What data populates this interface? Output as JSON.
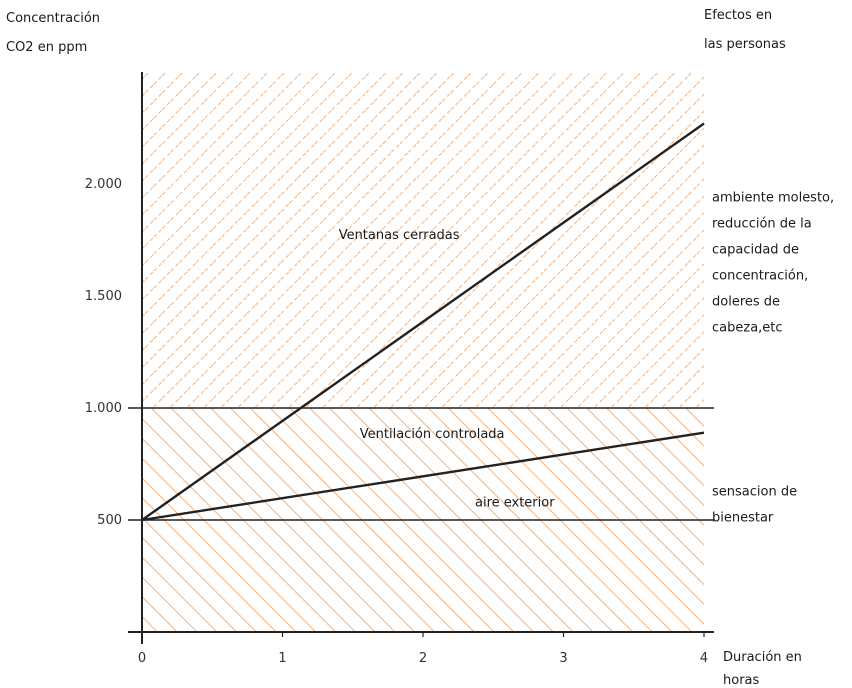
{
  "chart_data": {
    "type": "line",
    "ylabel_lines": [
      "Concentración",
      "CO2 en ppm"
    ],
    "xlabel_lines": [
      "Duración en",
      "horas"
    ],
    "right_title_lines": [
      "Efectos en",
      "las personas"
    ],
    "x_ticks": [
      "0",
      "1",
      "2",
      "3",
      "4"
    ],
    "y_ticks": [
      {
        "value": 500,
        "label": "500"
      },
      {
        "value": 1000,
        "label": "1.000"
      },
      {
        "value": 1500,
        "label": "1.500"
      },
      {
        "value": 2000,
        "label": "2.000"
      }
    ],
    "xlim": [
      0,
      4
    ],
    "ylim": [
      0,
      2500
    ],
    "series": [
      {
        "x": [
          0,
          4
        ],
        "y": [
          500,
          2270
        ],
        "color": "#222222"
      },
      {
        "x": [
          0,
          4
        ],
        "y": [
          500,
          890
        ],
        "color": "#222222"
      }
    ],
    "reference_lines": [
      1000,
      500
    ],
    "regions": [
      {
        "y_from": 1000,
        "y_to": 2500,
        "hatch": "dashed-diagonal",
        "color": "#f0a060"
      },
      {
        "y_from": 0,
        "y_to": 1000,
        "hatch": "solid-diagonal",
        "color": "#f0a060"
      }
    ],
    "annotations": [
      {
        "text": "Ventanas cerradas",
        "x": 1.4,
        "y": 1755
      },
      {
        "text": "Ventilación controlada",
        "x": 1.55,
        "y": 865
      },
      {
        "text": "aire exterior",
        "x": 2.37,
        "y": 560
      }
    ],
    "effects": [
      {
        "lines": [
          "ambiente molesto,",
          "reducción de la",
          "capacidad de",
          "concentración,",
          "doleres de",
          "cabeza,etc"
        ],
        "y_center": 1650
      },
      {
        "lines": [
          "sensacion de",
          "bienestar"
        ],
        "y_center": 570
      }
    ]
  }
}
